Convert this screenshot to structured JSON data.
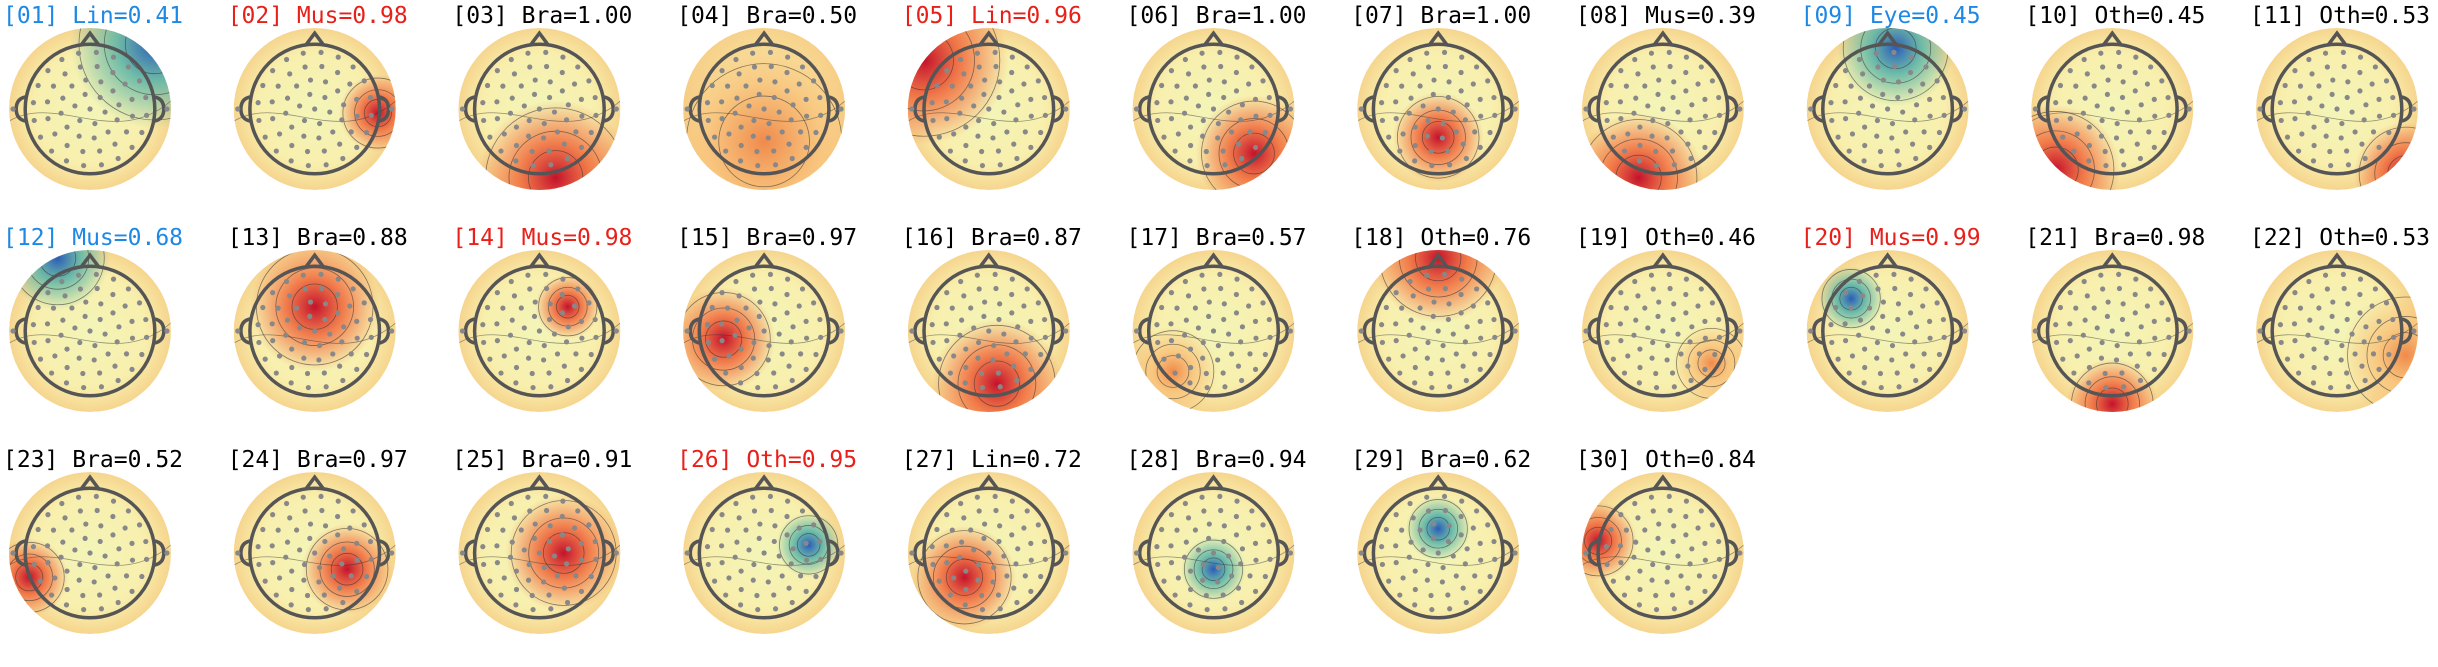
{
  "components": [
    {
      "label": "[01] Lin=0.41",
      "color": "#1e88e5"
    },
    {
      "label": "[02] Mus=0.98",
      "color": "#e8201a"
    },
    {
      "label": "[03] Bra=1.00",
      "color": "#000000"
    },
    {
      "label": "[04] Bra=0.50",
      "color": "#000000"
    },
    {
      "label": "[05] Lin=0.96",
      "color": "#e8201a"
    },
    {
      "label": "[06] Bra=1.00",
      "color": "#000000"
    },
    {
      "label": "[07] Bra=1.00",
      "color": "#000000"
    },
    {
      "label": "[08] Mus=0.39",
      "color": "#000000"
    },
    {
      "label": "[09] Eye=0.45",
      "color": "#1e88e5"
    },
    {
      "label": "[10] Oth=0.45",
      "color": "#000000"
    },
    {
      "label": "[11] Oth=0.53",
      "color": "#000000"
    },
    {
      "label": "[12] Mus=0.68",
      "color": "#1e88e5"
    },
    {
      "label": "[13] Bra=0.88",
      "color": "#000000"
    },
    {
      "label": "[14] Mus=0.98",
      "color": "#e8201a"
    },
    {
      "label": "[15] Bra=0.97",
      "color": "#000000"
    },
    {
      "label": "[16] Bra=0.87",
      "color": "#000000"
    },
    {
      "label": "[17] Bra=0.57",
      "color": "#000000"
    },
    {
      "label": "[18] Oth=0.76",
      "color": "#000000"
    },
    {
      "label": "[19] Oth=0.46",
      "color": "#000000"
    },
    {
      "label": "[20] Mus=0.99",
      "color": "#e8201a"
    },
    {
      "label": "[21] Bra=0.98",
      "color": "#000000"
    },
    {
      "label": "[22] Oth=0.53",
      "color": "#000000"
    },
    {
      "label": "[23] Bra=0.52",
      "color": "#000000"
    },
    {
      "label": "[24] Bra=0.97",
      "color": "#000000"
    },
    {
      "label": "[25] Bra=0.91",
      "color": "#000000"
    },
    {
      "label": "[26] Oth=0.95",
      "color": "#e8201a"
    },
    {
      "label": "[27] Lin=0.72",
      "color": "#000000"
    },
    {
      "label": "[28] Bra=0.94",
      "color": "#000000"
    },
    {
      "label": "[29] Bra=0.62",
      "color": "#000000"
    },
    {
      "label": "[30] Oth=0.84",
      "color": "#000000"
    }
  ]
}
